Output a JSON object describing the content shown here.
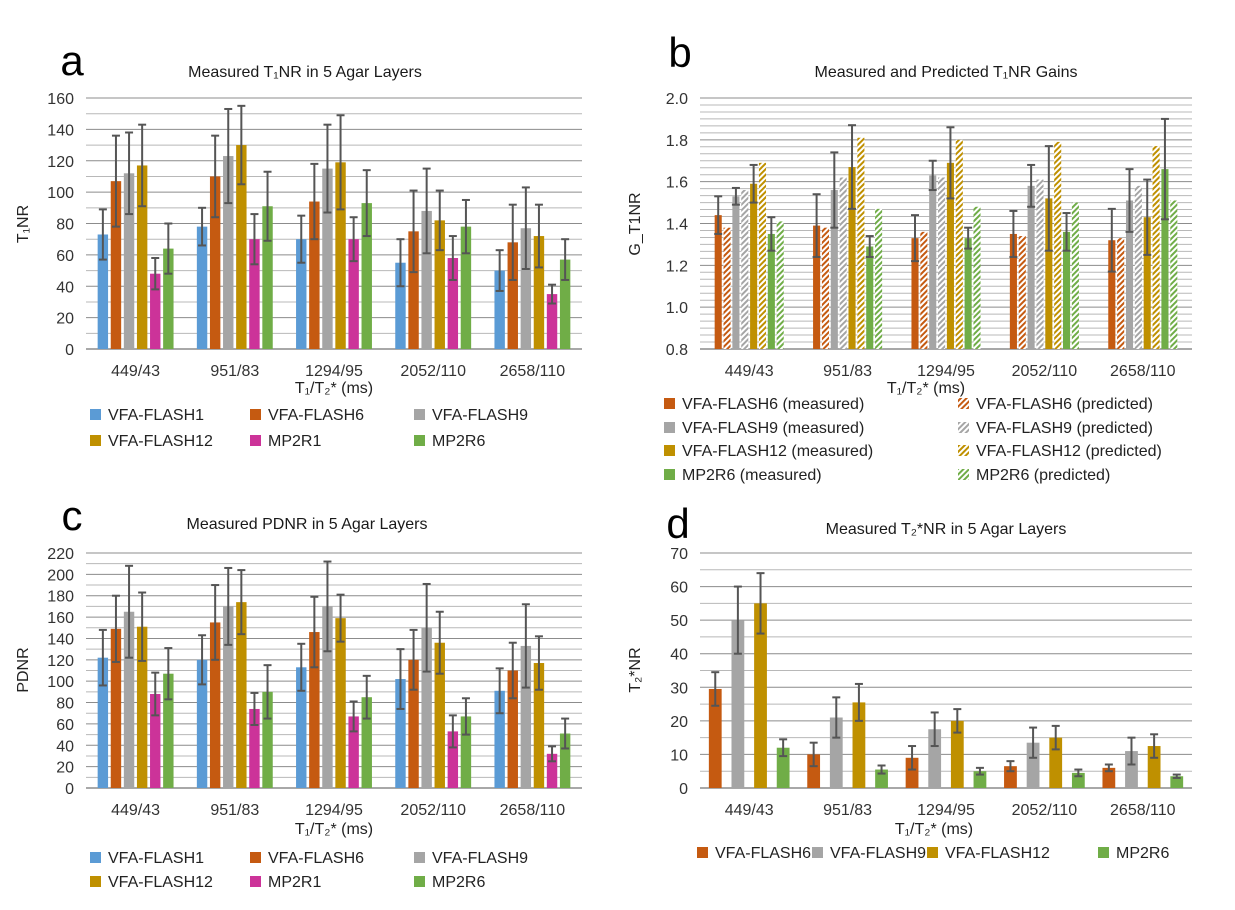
{
  "colors": {
    "VFA-FLASH1": "#5B9BD5",
    "VFA-FLASH6": "#C55A11",
    "VFA-FLASH9": "#A5A5A5",
    "VFA-FLASH12": "#BF9000",
    "MP2R1": "#CC3399",
    "MP2R6": "#70AD47",
    "errorbar": "#555555",
    "grid": "#A6A6A6"
  },
  "chart_data": [
    {
      "panel": "a",
      "type": "bar",
      "title": "Measured T₁NR in 5 Agar Layers",
      "xlabel": "T₁/T₂* (ms)",
      "ylabel": "T₁NR",
      "ylim": [
        0,
        160
      ],
      "yticks": [
        "0",
        "20",
        "40",
        "60",
        "80",
        "100",
        "120",
        "140",
        "160"
      ],
      "grid": true,
      "legend_position": "bottom",
      "categories": [
        "449/43",
        "951/83",
        "1294/95",
        "2052/110",
        "2658/110"
      ],
      "series": [
        {
          "name": "VFA-FLASH1",
          "values": [
            73,
            78,
            70,
            55,
            50
          ],
          "errors": [
            16,
            12,
            15,
            15,
            13
          ]
        },
        {
          "name": "VFA-FLASH6",
          "values": [
            107,
            110,
            94,
            75,
            68
          ],
          "errors": [
            29,
            26,
            24,
            26,
            24
          ]
        },
        {
          "name": "VFA-FLASH9",
          "values": [
            112,
            123,
            115,
            88,
            77
          ],
          "errors": [
            26,
            30,
            28,
            27,
            26
          ]
        },
        {
          "name": "VFA-FLASH12",
          "values": [
            117,
            130,
            119,
            82,
            72
          ],
          "errors": [
            26,
            25,
            30,
            19,
            20
          ]
        },
        {
          "name": "MP2R1",
          "values": [
            48,
            70,
            70,
            58,
            35
          ],
          "errors": [
            10,
            16,
            14,
            14,
            6
          ]
        },
        {
          "name": "MP2R6",
          "values": [
            64,
            91,
            93,
            78,
            57
          ],
          "errors": [
            16,
            22,
            21,
            17,
            13
          ]
        }
      ],
      "legend": [
        "VFA-FLASH1",
        "VFA-FLASH6",
        "VFA-FLASH9",
        "VFA-FLASH12",
        "MP2R1",
        "MP2R6"
      ]
    },
    {
      "panel": "b",
      "type": "bar",
      "title": "Measured and Predicted T₁NR Gains",
      "xlabel": "T₁/T₂* (ms)",
      "ylabel": "G_T1NR",
      "ylim": [
        0.8,
        2.0
      ],
      "yticks": [
        "0.8",
        "1.0",
        "1.2",
        "1.4",
        "1.6",
        "1.8",
        "2.0"
      ],
      "grid": true,
      "legend_position": "bottom",
      "categories": [
        "449/43",
        "951/83",
        "1294/95",
        "2052/110",
        "2658/110"
      ],
      "series": [
        {
          "name": "VFA-FLASH6 (measured)",
          "color_key": "VFA-FLASH6",
          "hatched": false,
          "values": [
            1.44,
            1.39,
            1.33,
            1.35,
            1.32
          ],
          "errors": [
            0.09,
            0.15,
            0.11,
            0.11,
            0.15
          ]
        },
        {
          "name": "VFA-FLASH6 (predicted)",
          "color_key": "VFA-FLASH6",
          "hatched": true,
          "values": [
            1.38,
            1.38,
            1.36,
            1.34,
            1.33
          ]
        },
        {
          "name": "VFA-FLASH9 (measured)",
          "color_key": "VFA-FLASH9",
          "hatched": false,
          "values": [
            1.53,
            1.56,
            1.63,
            1.58,
            1.51
          ],
          "errors": [
            0.04,
            0.18,
            0.07,
            0.1,
            0.15
          ]
        },
        {
          "name": "VFA-FLASH9 (predicted)",
          "color_key": "VFA-FLASH9",
          "hatched": true,
          "values": [
            1.56,
            1.62,
            1.62,
            1.61,
            1.58
          ]
        },
        {
          "name": "VFA-FLASH12 (measured)",
          "color_key": "VFA-FLASH12",
          "hatched": false,
          "values": [
            1.59,
            1.67,
            1.69,
            1.52,
            1.43
          ],
          "errors": [
            0.09,
            0.2,
            0.17,
            0.25,
            0.18
          ]
        },
        {
          "name": "VFA-FLASH12 (predicted)",
          "color_key": "VFA-FLASH12",
          "hatched": true,
          "values": [
            1.69,
            1.81,
            1.8,
            1.79,
            1.77
          ]
        },
        {
          "name": "MP2R6 (measured)",
          "color_key": "MP2R6",
          "hatched": false,
          "values": [
            1.35,
            1.29,
            1.33,
            1.36,
            1.66
          ],
          "errors": [
            0.08,
            0.05,
            0.05,
            0.09,
            0.24
          ]
        },
        {
          "name": "MP2R6 (predicted)",
          "color_key": "MP2R6",
          "hatched": true,
          "values": [
            1.41,
            1.47,
            1.48,
            1.5,
            1.51
          ]
        }
      ],
      "legend": [
        "VFA-FLASH6 (measured)",
        "VFA-FLASH6 (predicted)",
        "VFA-FLASH9 (measured)",
        "VFA-FLASH9 (predicted)",
        "VFA-FLASH12 (measured)",
        "VFA-FLASH12 (predicted)",
        "MP2R6 (measured)",
        "MP2R6 (predicted)"
      ]
    },
    {
      "panel": "c",
      "type": "bar",
      "title": "Measured PDNR in 5 Agar Layers",
      "xlabel": "T₁/T₂* (ms)",
      "ylabel": "PDNR",
      "ylim": [
        0,
        220
      ],
      "yticks": [
        "0",
        "20",
        "40",
        "60",
        "80",
        "100",
        "120",
        "140",
        "160",
        "180",
        "200",
        "220"
      ],
      "grid": true,
      "legend_position": "bottom",
      "categories": [
        "449/43",
        "951/83",
        "1294/95",
        "2052/110",
        "2658/110"
      ],
      "series": [
        {
          "name": "VFA-FLASH1",
          "values": [
            122,
            120,
            113,
            102,
            91
          ],
          "errors": [
            26,
            23,
            22,
            28,
            21
          ]
        },
        {
          "name": "VFA-FLASH6",
          "values": [
            149,
            155,
            146,
            120,
            110
          ],
          "errors": [
            31,
            35,
            33,
            28,
            26
          ]
        },
        {
          "name": "VFA-FLASH9",
          "values": [
            165,
            170,
            170,
            150,
            133
          ],
          "errors": [
            43,
            36,
            42,
            41,
            39
          ]
        },
        {
          "name": "VFA-FLASH12",
          "values": [
            151,
            174,
            159,
            136,
            117
          ],
          "errors": [
            32,
            30,
            22,
            29,
            25
          ]
        },
        {
          "name": "MP2R1",
          "values": [
            88,
            74,
            67,
            53,
            32
          ],
          "errors": [
            20,
            15,
            14,
            15,
            7
          ]
        },
        {
          "name": "MP2R6",
          "values": [
            107,
            90,
            85,
            67,
            51
          ],
          "errors": [
            24,
            25,
            20,
            17,
            14
          ]
        }
      ],
      "legend": [
        "VFA-FLASH1",
        "VFA-FLASH6",
        "VFA-FLASH9",
        "VFA-FLASH12",
        "MP2R1",
        "MP2R6"
      ]
    },
    {
      "panel": "d",
      "type": "bar",
      "title": "Measured T₂*NR in 5 Agar Layers",
      "xlabel": "T₁/T₂* (ms)",
      "ylabel": "T₂*NR",
      "ylim": [
        0,
        70
      ],
      "yticks": [
        "0",
        "10",
        "20",
        "30",
        "40",
        "50",
        "60",
        "70"
      ],
      "grid": true,
      "legend_position": "bottom",
      "categories": [
        "449/43",
        "951/83",
        "1294/95",
        "2052/110",
        "2658/110"
      ],
      "series": [
        {
          "name": "VFA-FLASH6",
          "values": [
            29.5,
            10,
            9,
            6.5,
            6
          ],
          "errors": [
            5,
            3.5,
            3.5,
            1.5,
            1
          ]
        },
        {
          "name": "VFA-FLASH9",
          "values": [
            50,
            21,
            17.5,
            13.5,
            11
          ],
          "errors": [
            10,
            6,
            5,
            4.5,
            4
          ]
        },
        {
          "name": "VFA-FLASH12",
          "values": [
            55,
            25.5,
            20,
            15,
            12.5
          ],
          "errors": [
            9,
            5.5,
            3.5,
            3.5,
            3.5
          ]
        },
        {
          "name": "MP2R6",
          "values": [
            12,
            5.5,
            5,
            4.5,
            3.5
          ],
          "errors": [
            2.5,
            1.2,
            1,
            1,
            0.5
          ]
        }
      ],
      "legend": [
        "VFA-FLASH6",
        "VFA-FLASH9",
        "VFA-FLASH12",
        "MP2R6"
      ]
    }
  ]
}
